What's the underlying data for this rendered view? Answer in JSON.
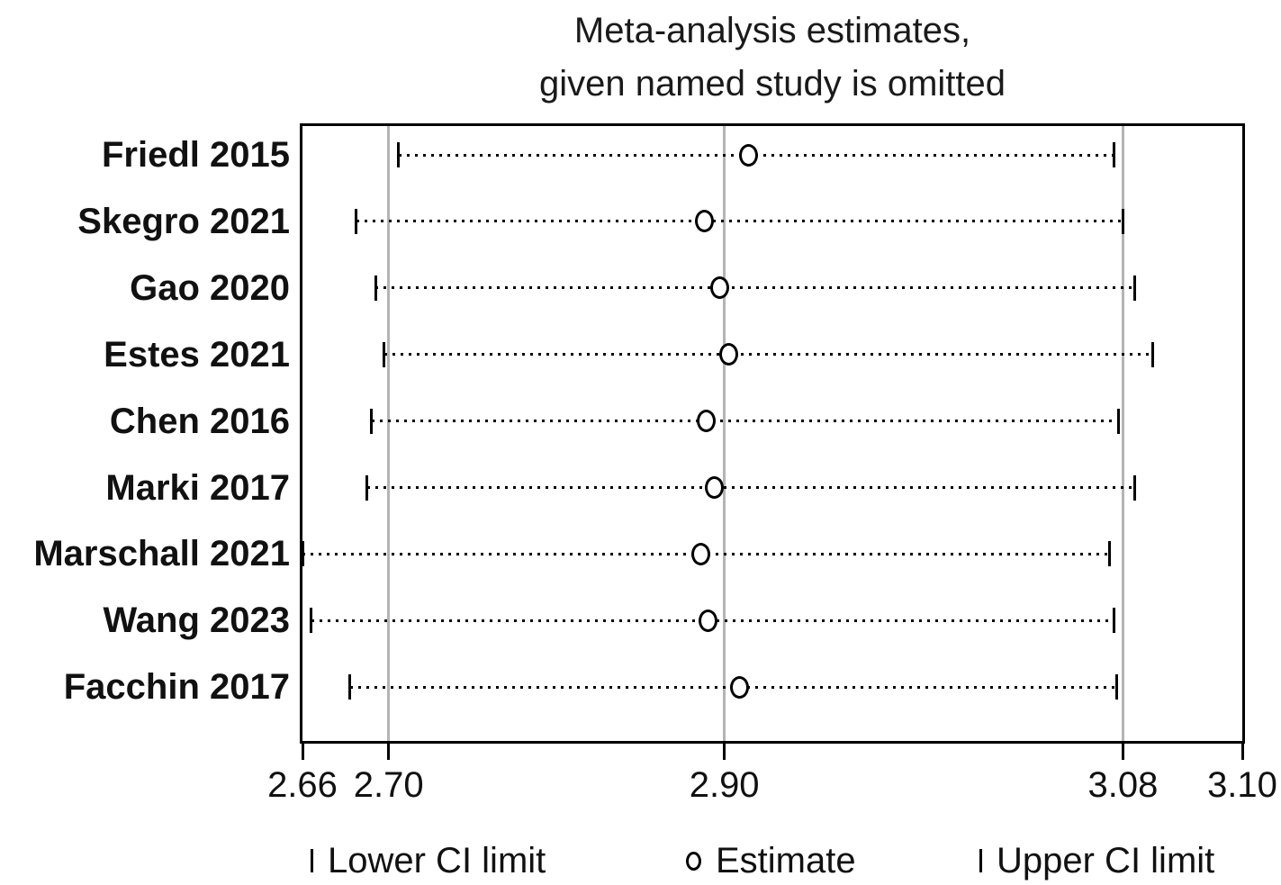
{
  "title": {
    "line1": "Meta-analysis estimates,",
    "line2": "given named study is omitted"
  },
  "chart_data": {
    "type": "scatter",
    "subtype": "leave-one-out-sensitivity-forest",
    "title": "Meta-analysis estimates, given named study is omitted",
    "xlabel": "",
    "ylabel": "",
    "xlim": [
      2.66,
      3.1
    ],
    "grid": "vertical-lines-at-overall-estimate-and-ci",
    "legend_position": "bottom",
    "studies": [
      {
        "name": "Friedl 2015",
        "lower": 2.706,
        "estimate": 2.911,
        "upper": 3.076
      },
      {
        "name": "Skegro 2021",
        "lower": 2.685,
        "estimate": 2.888,
        "upper": 3.08
      },
      {
        "name": "Gao 2020",
        "lower": 2.694,
        "estimate": 2.897,
        "upper": 3.082
      },
      {
        "name": "Estes 2021",
        "lower": 2.698,
        "estimate": 2.902,
        "upper": 3.085
      },
      {
        "name": "Chen 2016",
        "lower": 2.692,
        "estimate": 2.889,
        "upper": 3.078
      },
      {
        "name": "Marki 2017",
        "lower": 2.69,
        "estimate": 2.894,
        "upper": 3.082
      },
      {
        "name": "Marschall 2021",
        "lower": 2.66,
        "estimate": 2.886,
        "upper": 3.074
      },
      {
        "name": "Wang 2023",
        "lower": 2.664,
        "estimate": 2.89,
        "upper": 3.076
      },
      {
        "name": "Facchin 2017",
        "lower": 2.682,
        "estimate": 2.907,
        "upper": 3.077
      }
    ],
    "x_ticks": [
      2.66,
      2.7,
      2.9,
      3.08,
      3.1
    ],
    "x_tick_labels": [
      "2.66",
      "2.70",
      "2.90",
      "3.08",
      "3.10"
    ],
    "gridline_values": [
      2.7,
      2.9,
      3.08
    ],
    "axis_anchor_values": [
      2.66,
      2.7,
      2.9,
      3.08,
      3.1
    ],
    "axis_anchor_fractions": [
      0.0,
      0.0917,
      0.4489,
      0.873,
      1.0
    ],
    "legend": [
      {
        "marker": "lower-ci-tick",
        "label": "Lower CI limit"
      },
      {
        "marker": "estimate-circle",
        "label": "Estimate"
      },
      {
        "marker": "upper-ci-tick",
        "label": "Upper CI limit"
      }
    ],
    "colors": {
      "marker": "#000000",
      "frame": "#000000",
      "gridline": "#b4b4b4",
      "text": "#1a1a1a",
      "background": "#ffffff"
    }
  }
}
